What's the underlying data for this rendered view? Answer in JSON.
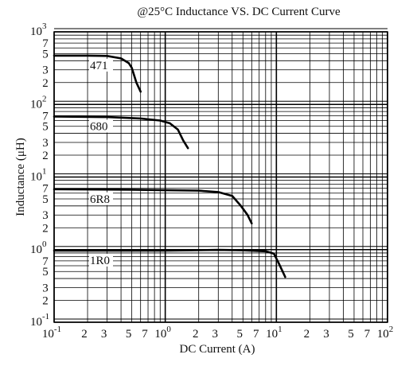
{
  "chart_data": {
    "type": "line",
    "title": "@25°C Inductance VS. DC Current Curve",
    "xlabel": "DC Current (A)",
    "ylabel": "Inductance (μH)",
    "x_scale": "log",
    "y_scale": "log",
    "xlim": [
      0.1,
      100
    ],
    "ylim": [
      0.1,
      1000
    ],
    "grid": true,
    "x_major_ticks": [
      {
        "base": "10",
        "exp": "-1"
      },
      {
        "base": "10",
        "exp": "0"
      },
      {
        "base": "10",
        "exp": "1"
      },
      {
        "base": "10",
        "exp": "2"
      }
    ],
    "x_minor_labels": [
      "2",
      "3",
      "5",
      "7"
    ],
    "y_major_ticks": [
      {
        "base": "10",
        "exp": "-1"
      },
      {
        "base": "10",
        "exp": "0"
      },
      {
        "base": "10",
        "exp": "1"
      },
      {
        "base": "10",
        "exp": "2"
      },
      {
        "base": "10",
        "exp": "3"
      }
    ],
    "y_minor_labels": [
      "2",
      "3",
      "5",
      "7"
    ],
    "series": [
      {
        "name": "471",
        "points": [
          [
            0.1,
            470
          ],
          [
            0.2,
            470
          ],
          [
            0.3,
            465
          ],
          [
            0.4,
            430
          ],
          [
            0.47,
            370
          ],
          [
            0.5,
            320
          ],
          [
            0.55,
            200
          ],
          [
            0.6,
            150
          ]
        ]
      },
      {
        "name": "680",
        "points": [
          [
            0.1,
            68
          ],
          [
            0.3,
            67
          ],
          [
            0.6,
            64
          ],
          [
            0.9,
            60
          ],
          [
            1.1,
            55
          ],
          [
            1.3,
            45
          ],
          [
            1.45,
            32
          ],
          [
            1.6,
            25
          ]
        ]
      },
      {
        "name": "6R8",
        "points": [
          [
            0.1,
            6.8
          ],
          [
            0.5,
            6.7
          ],
          [
            2.0,
            6.5
          ],
          [
            3.0,
            6.2
          ],
          [
            4.0,
            5.5
          ],
          [
            4.8,
            4.0
          ],
          [
            5.5,
            3.0
          ],
          [
            6.0,
            2.3
          ]
        ]
      },
      {
        "name": "1R0",
        "points": [
          [
            0.1,
            0.97
          ],
          [
            1.0,
            0.97
          ],
          [
            3.0,
            0.99
          ],
          [
            5.0,
            0.98
          ],
          [
            8.0,
            0.95
          ],
          [
            9.5,
            0.88
          ],
          [
            10.5,
            0.65
          ],
          [
            12.0,
            0.42
          ]
        ]
      }
    ]
  }
}
